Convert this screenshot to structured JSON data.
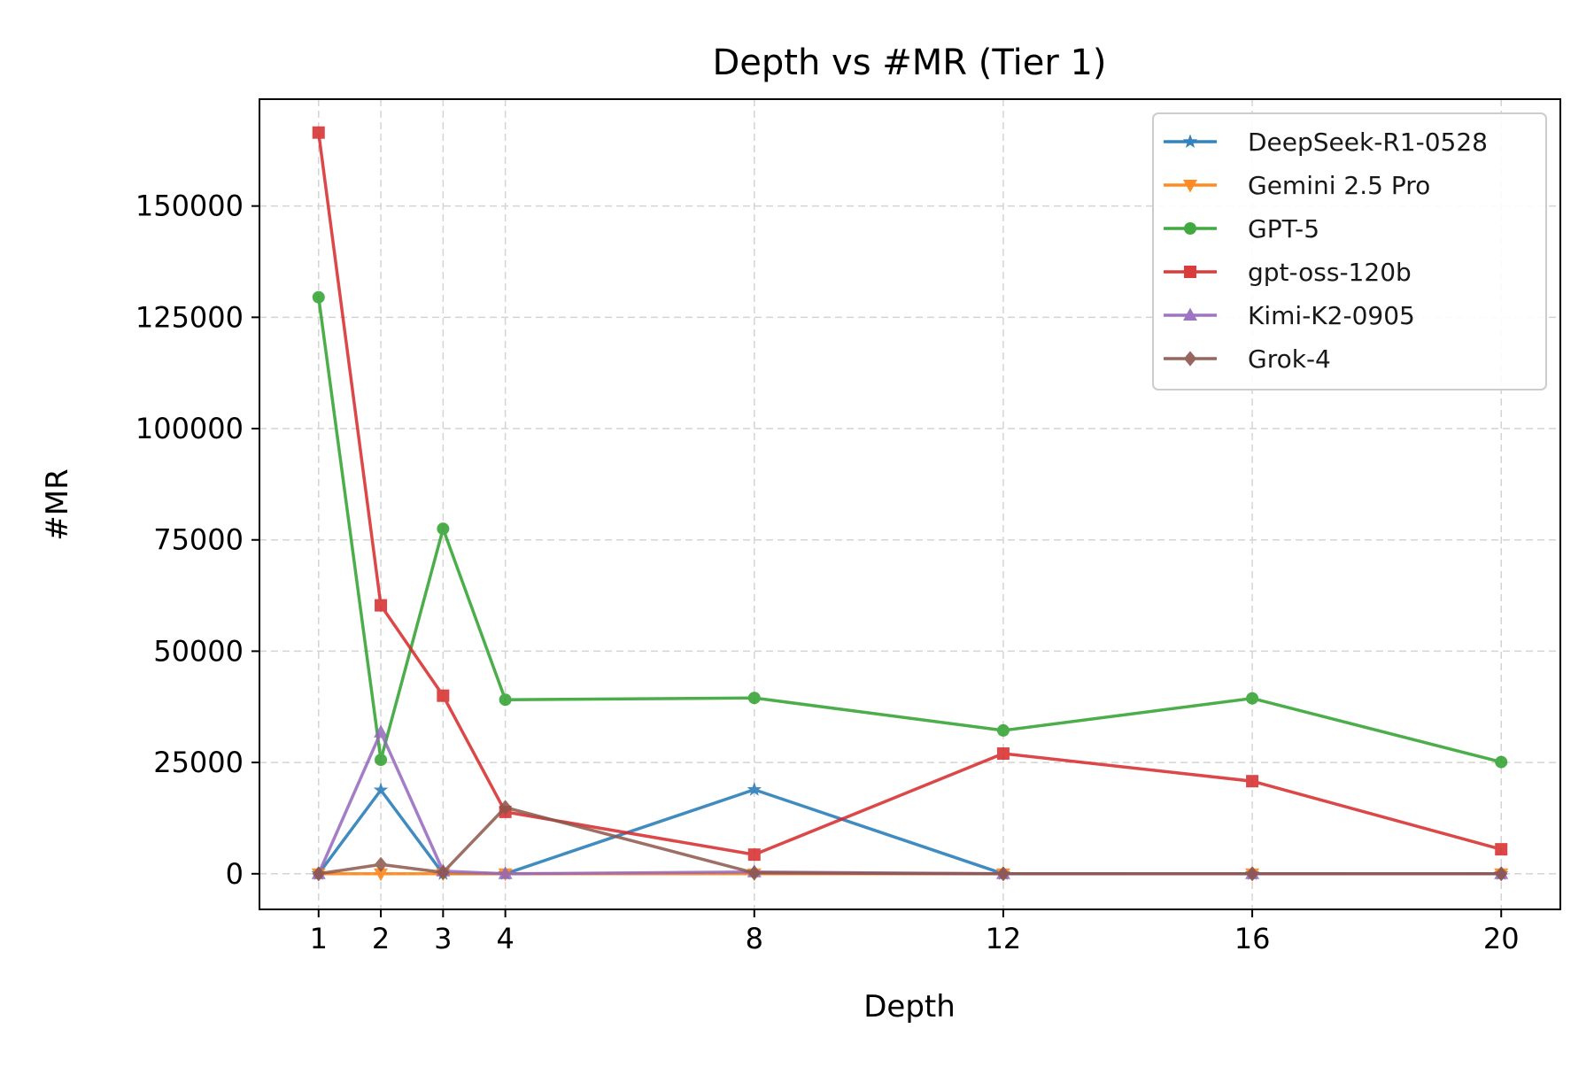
{
  "chart_data": {
    "type": "line",
    "title": "Depth vs #MR (Tier 1)",
    "xlabel": "Depth",
    "ylabel": "#MR",
    "x": [
      1,
      2,
      3,
      4,
      8,
      12,
      16,
      20
    ],
    "xlim": [
      0.05,
      20.95
    ],
    "ylim": [
      -8000,
      174000
    ],
    "xticks": [
      1,
      2,
      3,
      4,
      8,
      12,
      16,
      20
    ],
    "yticks": [
      0,
      25000,
      50000,
      75000,
      100000,
      125000,
      150000
    ],
    "grid": true,
    "legend_position": "top-right",
    "series": [
      {
        "name": "DeepSeek-R1-0528",
        "color": "#1f77b4",
        "marker": "star",
        "values": [
          0,
          18800,
          0,
          0,
          18900,
          0,
          0,
          0
        ]
      },
      {
        "name": "Gemini 2.5 Pro",
        "color": "#ff7f0e",
        "marker": "triangle-down",
        "values": [
          0,
          0,
          0,
          0,
          0,
          0,
          0,
          0
        ]
      },
      {
        "name": "GPT-5",
        "color": "#2ca02c",
        "marker": "circle",
        "values": [
          129500,
          25600,
          77500,
          39100,
          39500,
          32200,
          39400,
          25100
        ]
      },
      {
        "name": "gpt-oss-120b",
        "color": "#d62728",
        "marker": "square",
        "values": [
          166500,
          60300,
          40000,
          13900,
          4300,
          27000,
          20800,
          5500
        ]
      },
      {
        "name": "Kimi-K2-0905",
        "color": "#9467bd",
        "marker": "triangle-up",
        "values": [
          0,
          31800,
          600,
          0,
          400,
          0,
          0,
          0
        ]
      },
      {
        "name": "Grok-4",
        "color": "#8c564b",
        "marker": "diamond",
        "values": [
          0,
          2100,
          300,
          14900,
          200,
          0,
          0,
          0
        ]
      }
    ]
  }
}
